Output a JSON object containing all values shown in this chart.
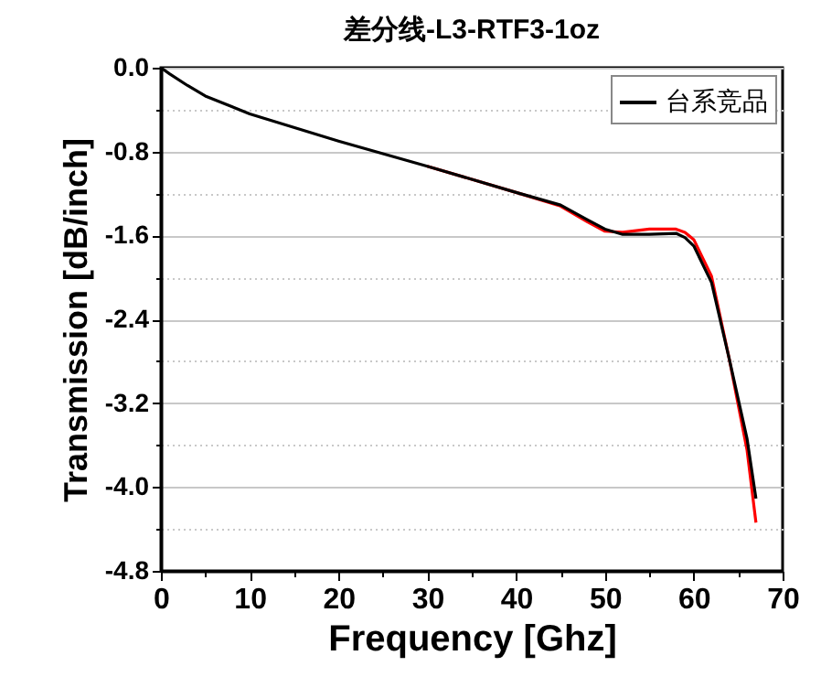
{
  "chart_data": {
    "type": "line",
    "title": "差分线-L3-RTF3-1oz",
    "xlabel": "Frequency [Ghz]",
    "ylabel": "Transmission [dB/inch]",
    "x": [
      0,
      1,
      3,
      5,
      10,
      20,
      30,
      40,
      45,
      48,
      50,
      52,
      55,
      58,
      59,
      60,
      62,
      64,
      66,
      67
    ],
    "series": [
      {
        "color": "#ff0000",
        "values": [
          null,
          null,
          null,
          null,
          null,
          null,
          -0.94,
          -1.19,
          -1.32,
          -1.47,
          -1.56,
          -1.57,
          -1.54,
          -1.54,
          -1.57,
          -1.64,
          -1.99,
          -2.78,
          -3.65,
          -4.34
        ]
      },
      {
        "name": "台系竞品",
        "color": "#000000",
        "values": [
          0,
          -0.06,
          -0.17,
          -0.27,
          -0.44,
          -0.7,
          -0.94,
          -1.19,
          -1.31,
          -1.45,
          -1.54,
          -1.59,
          -1.59,
          -1.58,
          -1.62,
          -1.7,
          -2.05,
          -2.78,
          -3.54,
          -4.11
        ]
      }
    ],
    "xlim": [
      0,
      70
    ],
    "ylim": [
      -4.8,
      0
    ],
    "xticks": [
      0,
      {
        "value": 5,
        "label": null
      },
      10,
      {
        "value": 15,
        "label": null
      },
      20,
      {
        "value": 25,
        "label": null
      },
      30,
      {
        "value": 35,
        "label": null
      },
      40,
      {
        "value": 45,
        "label": null
      },
      50,
      {
        "value": 55,
        "label": null
      },
      60,
      {
        "value": 65,
        "label": null
      },
      70
    ],
    "yticks": [
      {
        "value": 0,
        "label": "0.0"
      },
      {
        "value": -0.4,
        "label": null
      },
      -0.8,
      {
        "value": -1.2,
        "label": null
      },
      -1.6,
      {
        "value": -2.0,
        "label": null
      },
      -2.4,
      {
        "value": -2.8,
        "label": null
      },
      -3.2,
      {
        "value": -3.6,
        "label": null
      },
      {
        "value": -4.0,
        "label": "-4.0"
      },
      {
        "value": -4.4,
        "label": null
      },
      -4.8
    ],
    "grid": "y",
    "legend": "top right",
    "marker": "none",
    "line_style": "solid"
  }
}
